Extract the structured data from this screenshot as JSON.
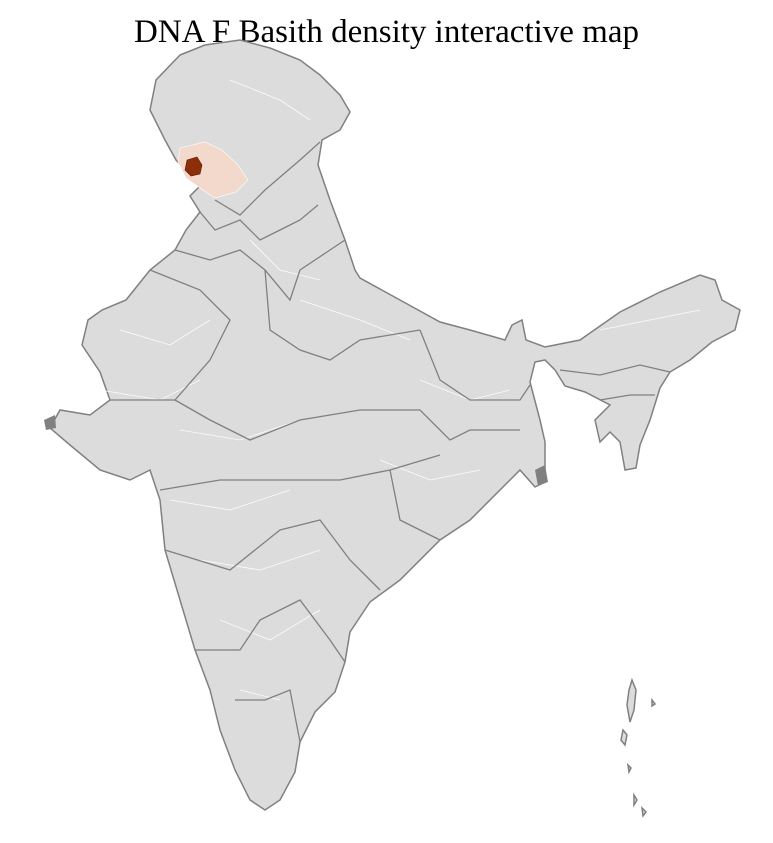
{
  "title": "DNA F Basith density interactive map",
  "map": {
    "region": "India districts",
    "colors": {
      "no_data": "#dcdcdc",
      "district_border": "#ffffff",
      "state_border": "#808080",
      "low_density": "#f3d9cc",
      "high_density": "#8b2e0a"
    },
    "highlighted_regions": [
      {
        "level": "high",
        "area": "Jammu & Kashmir (south-west district)"
      },
      {
        "level": "low",
        "area": "surrounding Jammu & Kashmir districts"
      }
    ]
  }
}
